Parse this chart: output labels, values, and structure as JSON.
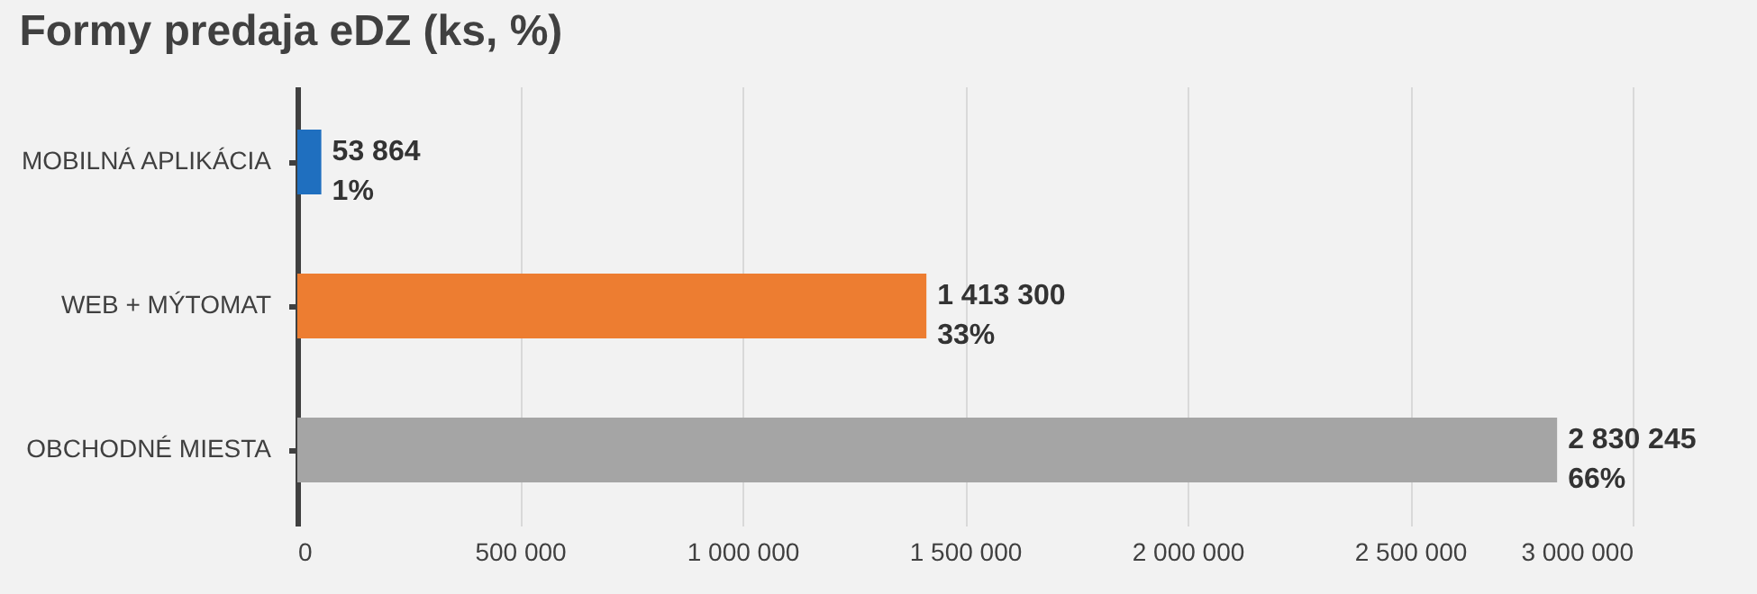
{
  "chart_data": {
    "type": "bar",
    "title": "Formy predaja eDZ (ks, %)",
    "orientation": "horizontal",
    "categories": [
      "MOBILNÁ APLIKÁCIA",
      "WEB + MÝTOMAT",
      "OBCHODNÉ MIESTA"
    ],
    "values": [
      53864,
      1413300,
      2830245
    ],
    "colors": [
      "#1f6fbf",
      "#ed7d31",
      "#a5a5a5"
    ],
    "value_labels": [
      "53 864\n1%",
      "1 413 300\n33%",
      "2 830 245\n66%"
    ],
    "xlim": [
      0,
      3000000
    ],
    "xticks": [
      0,
      {
        "value": 500000,
        "label": "500 000"
      },
      {
        "value": 1000000,
        "label": "1 000 000"
      },
      {
        "value": 1500000,
        "label": "1 500 000"
      },
      {
        "value": 2000000,
        "label": "2 000 000"
      },
      {
        "value": 2500000,
        "label": "2 500 000"
      },
      {
        "value": 3000000,
        "label": "3 000 000"
      }
    ],
    "grid": "x"
  }
}
